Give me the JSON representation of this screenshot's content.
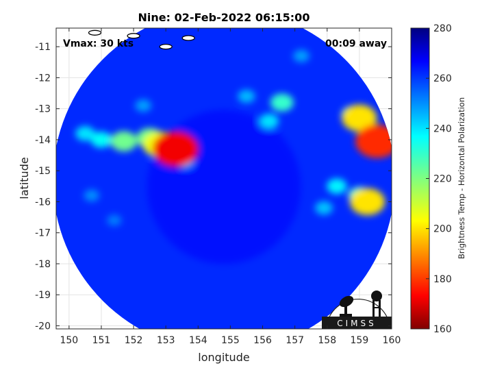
{
  "chart_data": {
    "type": "heatmap",
    "title": "Nine: 02-Feb-2022 06:15:00",
    "annotations": {
      "left": "Vmax: 30 kts",
      "right": "00:09 away"
    },
    "xlabel": "longitude",
    "ylabel": "latitude",
    "xlim": [
      149.6,
      160.0
    ],
    "ylim": [
      -20.1,
      -10.4
    ],
    "xticks": [
      150,
      151,
      152,
      153,
      154,
      155,
      156,
      157,
      158,
      159,
      160
    ],
    "yticks": [
      -11,
      -12,
      -13,
      -14,
      -15,
      -16,
      -17,
      -18,
      -19,
      -20
    ],
    "grid": true,
    "colorbar": {
      "label": "Brightness Temp - Horizontal Polarization",
      "min": 160,
      "max": 280,
      "ticks": [
        280,
        260,
        240,
        220,
        200,
        180,
        160
      ],
      "colormap": "jet"
    },
    "swath": {
      "center_lon": 154.8,
      "center_lat": -15.3,
      "radius_deg": 5.3
    },
    "background_temp": 262,
    "features": [
      {
        "lon": 153.3,
        "lat": -14.3,
        "temp": 172
      },
      {
        "lon": 152.8,
        "lat": -14.15,
        "temp": 205
      },
      {
        "lon": 152.5,
        "lat": -13.95,
        "temp": 222
      },
      {
        "lon": 151.7,
        "lat": -14.05,
        "temp": 222
      },
      {
        "lon": 151.0,
        "lat": -14.0,
        "temp": 236
      },
      {
        "lon": 150.5,
        "lat": -13.8,
        "temp": 240
      },
      {
        "lon": 159.55,
        "lat": -14.05,
        "temp": 178
      },
      {
        "lon": 159.3,
        "lat": -14.0,
        "temp": 225
      },
      {
        "lon": 159.0,
        "lat": -13.3,
        "temp": 200
      },
      {
        "lon": 158.8,
        "lat": -13.2,
        "temp": 230
      },
      {
        "lon": 159.25,
        "lat": -16.0,
        "temp": 200
      },
      {
        "lon": 159.0,
        "lat": -15.8,
        "temp": 232
      },
      {
        "lon": 158.3,
        "lat": -15.5,
        "temp": 238
      },
      {
        "lon": 156.6,
        "lat": -12.8,
        "temp": 230
      },
      {
        "lon": 156.2,
        "lat": -13.4,
        "temp": 240
      },
      {
        "lon": 155.5,
        "lat": -12.6,
        "temp": 245
      },
      {
        "lon": 157.2,
        "lat": -11.3,
        "temp": 248
      },
      {
        "lon": 153.6,
        "lat": -14.7,
        "temp": 245
      },
      {
        "lon": 150.7,
        "lat": -15.8,
        "temp": 250
      },
      {
        "lon": 151.4,
        "lat": -16.6,
        "temp": 252
      },
      {
        "lon": 157.9,
        "lat": -16.2,
        "temp": 244
      },
      {
        "lon": 152.3,
        "lat": -12.9,
        "temp": 248
      }
    ],
    "coastlines": [
      {
        "lon": 153.7,
        "lat": -10.72
      },
      {
        "lon": 153.0,
        "lat": -11.0
      },
      {
        "lon": 150.8,
        "lat": -10.55
      },
      {
        "lon": 152.0,
        "lat": -10.65
      }
    ]
  },
  "logo": {
    "text": "CIMSS"
  }
}
